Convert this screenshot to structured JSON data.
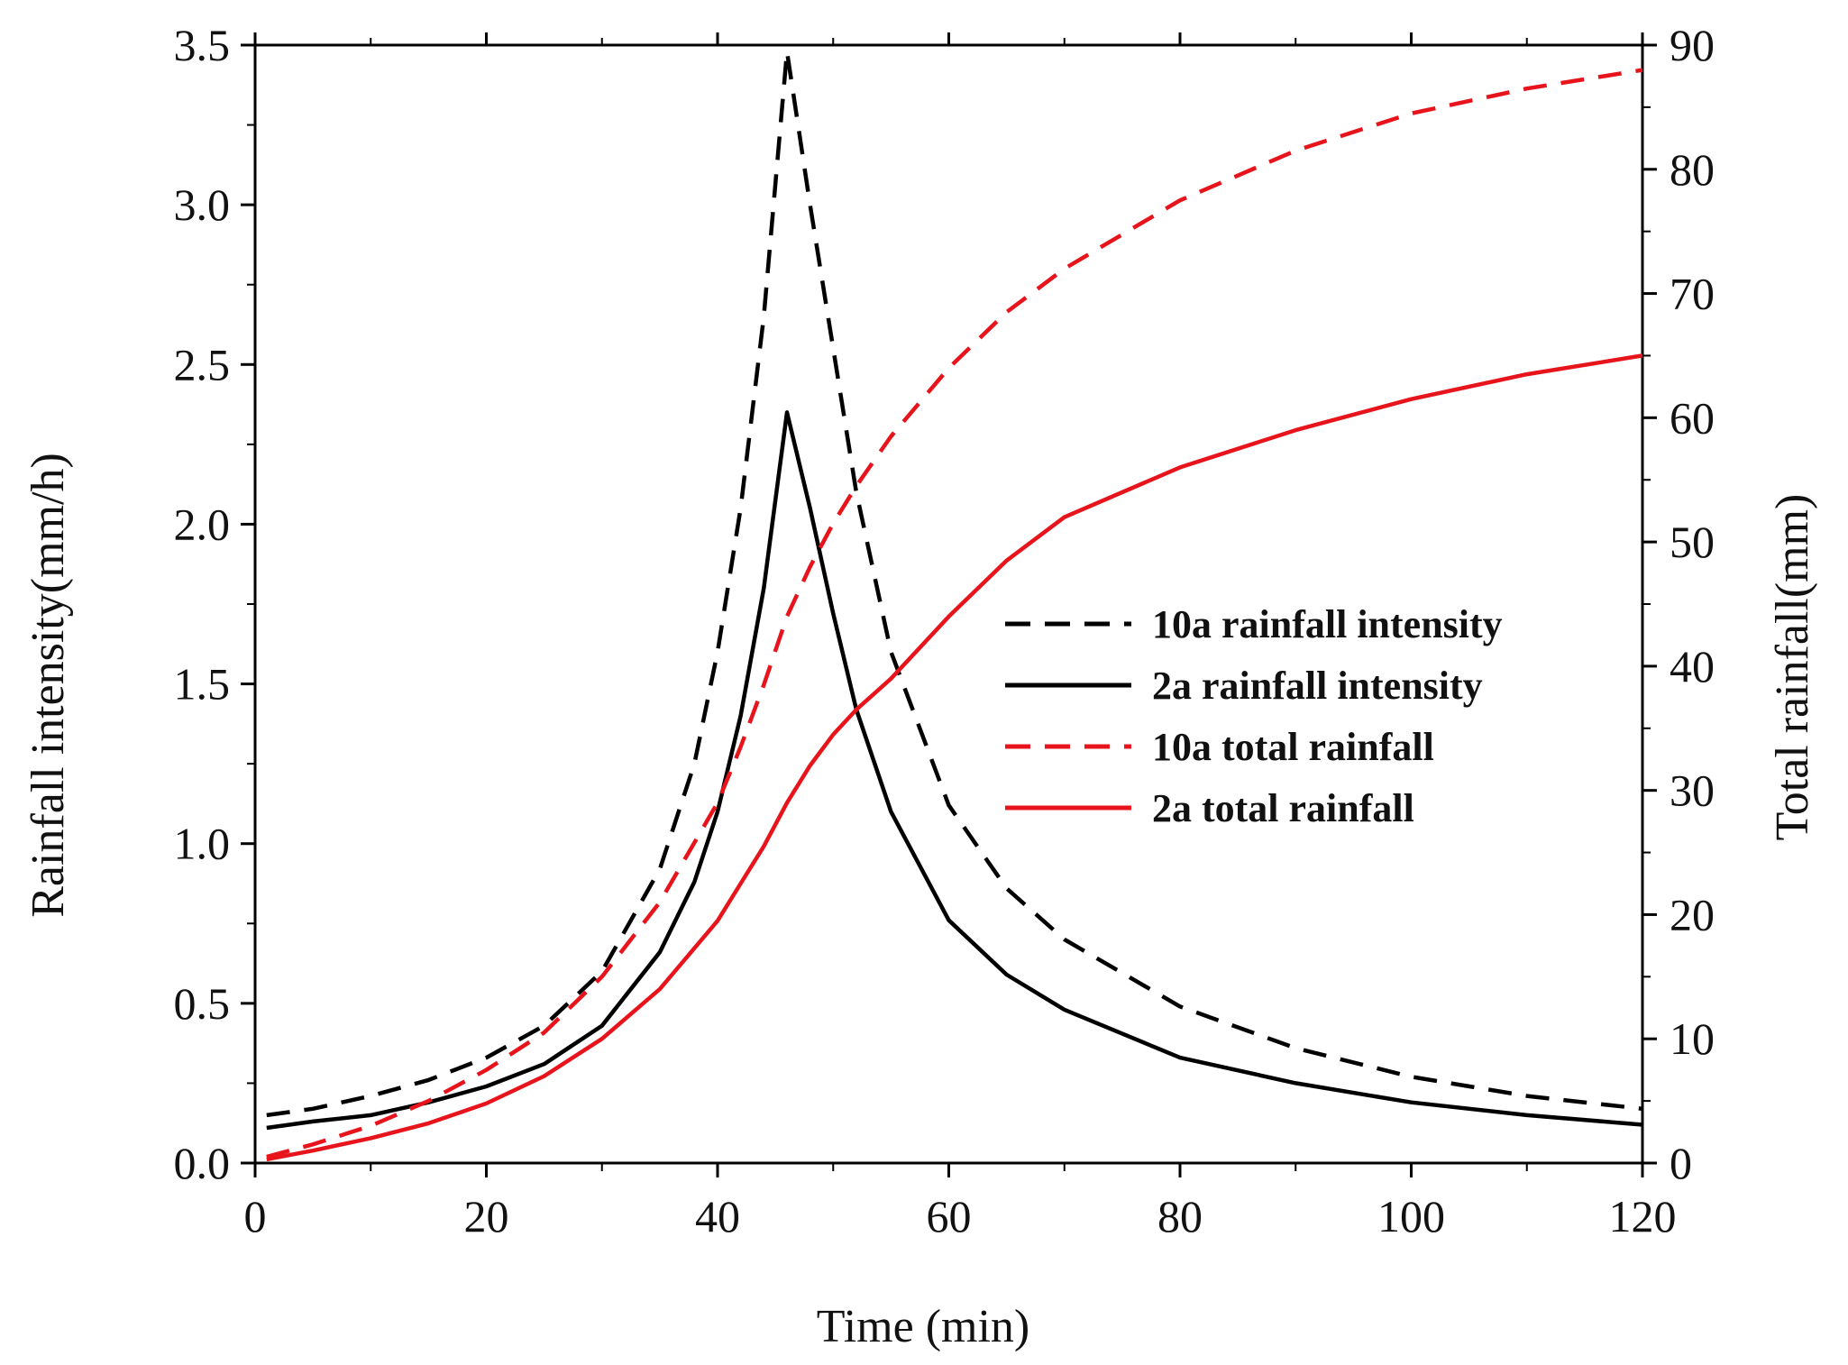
{
  "chart_data": {
    "type": "line",
    "title": "",
    "xlabel": "Time (min)",
    "ylabel": "Rainfall intensity(mm/h)",
    "y2label": "Total rainfall(mm)",
    "xlim": [
      0,
      120
    ],
    "ylim": [
      0,
      3.5
    ],
    "y2lim": [
      0,
      90
    ],
    "xticks": [
      0,
      20,
      40,
      60,
      80,
      100,
      120
    ],
    "yticks": [
      0.0,
      0.5,
      1.0,
      1.5,
      2.0,
      2.5,
      3.0,
      3.5
    ],
    "y2ticks": [
      0,
      10,
      20,
      30,
      40,
      50,
      60,
      70,
      80,
      90
    ],
    "xtick_labels": [
      "0",
      "20",
      "40",
      "60",
      "80",
      "100",
      "120"
    ],
    "ytick_labels": [
      "0.0",
      "0.5",
      "1.0",
      "1.5",
      "2.0",
      "2.5",
      "3.0",
      "3.5"
    ],
    "y2tick_labels": [
      "0",
      "10",
      "20",
      "30",
      "40",
      "50",
      "60",
      "70",
      "80",
      "90"
    ],
    "grid": false,
    "legend_position": "center-right",
    "series": [
      {
        "name": "10a rainfall intensity",
        "axis": "left",
        "color": "#000000",
        "style": "dashed",
        "x": [
          1,
          5,
          10,
          15,
          20,
          25,
          30,
          35,
          38,
          40,
          42,
          44,
          46,
          48,
          50,
          52,
          55,
          60,
          65,
          70,
          80,
          90,
          100,
          110,
          120
        ],
        "y": [
          0.15,
          0.17,
          0.21,
          0.26,
          0.33,
          0.43,
          0.6,
          0.92,
          1.25,
          1.6,
          2.05,
          2.65,
          3.48,
          3.0,
          2.55,
          2.1,
          1.6,
          1.12,
          0.86,
          0.7,
          0.49,
          0.36,
          0.27,
          0.21,
          0.17
        ]
      },
      {
        "name": "2a rainfall intensity",
        "axis": "left",
        "color": "#000000",
        "style": "solid",
        "x": [
          1,
          5,
          10,
          15,
          20,
          25,
          30,
          35,
          38,
          40,
          42,
          44,
          46,
          48,
          50,
          52,
          55,
          60,
          65,
          70,
          80,
          90,
          100,
          110,
          120
        ],
        "y": [
          0.11,
          0.13,
          0.15,
          0.19,
          0.24,
          0.31,
          0.43,
          0.66,
          0.88,
          1.1,
          1.4,
          1.8,
          2.35,
          2.05,
          1.72,
          1.42,
          1.1,
          0.76,
          0.59,
          0.48,
          0.33,
          0.25,
          0.19,
          0.15,
          0.12
        ]
      },
      {
        "name": "10a total rainfall",
        "axis": "right",
        "color": "#e8141c",
        "style": "dashed",
        "x": [
          1,
          5,
          10,
          15,
          20,
          25,
          30,
          35,
          40,
          42,
          44,
          46,
          48,
          50,
          52,
          55,
          60,
          65,
          70,
          80,
          90,
          100,
          110,
          120
        ],
        "y": [
          0.5,
          1.5,
          3.0,
          5.0,
          7.5,
          10.5,
          15.0,
          21.0,
          29.0,
          33.5,
          38.5,
          44.0,
          48.0,
          51.5,
          54.5,
          58.5,
          64.0,
          68.5,
          72.0,
          77.5,
          81.5,
          84.5,
          86.5,
          88.0
        ]
      },
      {
        "name": "2a total rainfall",
        "axis": "right",
        "color": "#e8141c",
        "style": "solid",
        "x": [
          1,
          5,
          10,
          15,
          20,
          25,
          30,
          35,
          40,
          42,
          44,
          46,
          48,
          50,
          52,
          55,
          60,
          65,
          70,
          80,
          90,
          100,
          110,
          120
        ],
        "y": [
          0.3,
          1.0,
          2.0,
          3.2,
          4.8,
          7.0,
          10.0,
          14.0,
          19.5,
          22.5,
          25.5,
          29.0,
          32.0,
          34.5,
          36.5,
          39.0,
          44.0,
          48.5,
          52.0,
          56.0,
          59.0,
          61.5,
          63.5,
          65.0
        ]
      }
    ]
  }
}
